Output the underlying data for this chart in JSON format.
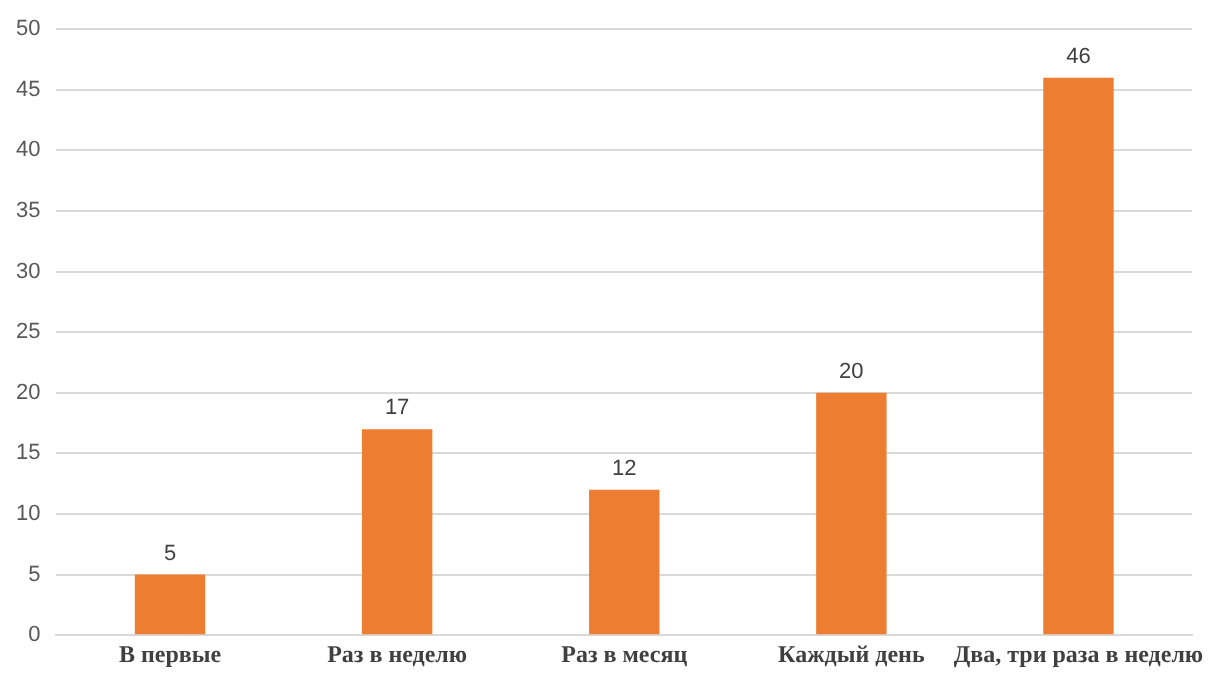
{
  "chart_data": {
    "type": "bar",
    "categories": [
      "В первые",
      "Раз в неделю",
      "Раз в месяц",
      "Каждый день",
      "Два, три раза в неделю"
    ],
    "values": [
      5,
      17,
      12,
      20,
      46
    ],
    "color": "#ed7d31",
    "ylim": [
      0,
      50
    ],
    "yticks": [
      0,
      5,
      10,
      15,
      20,
      25,
      30,
      35,
      40,
      45,
      50
    ],
    "grid": "y",
    "data_labels": true,
    "legend": false
  }
}
